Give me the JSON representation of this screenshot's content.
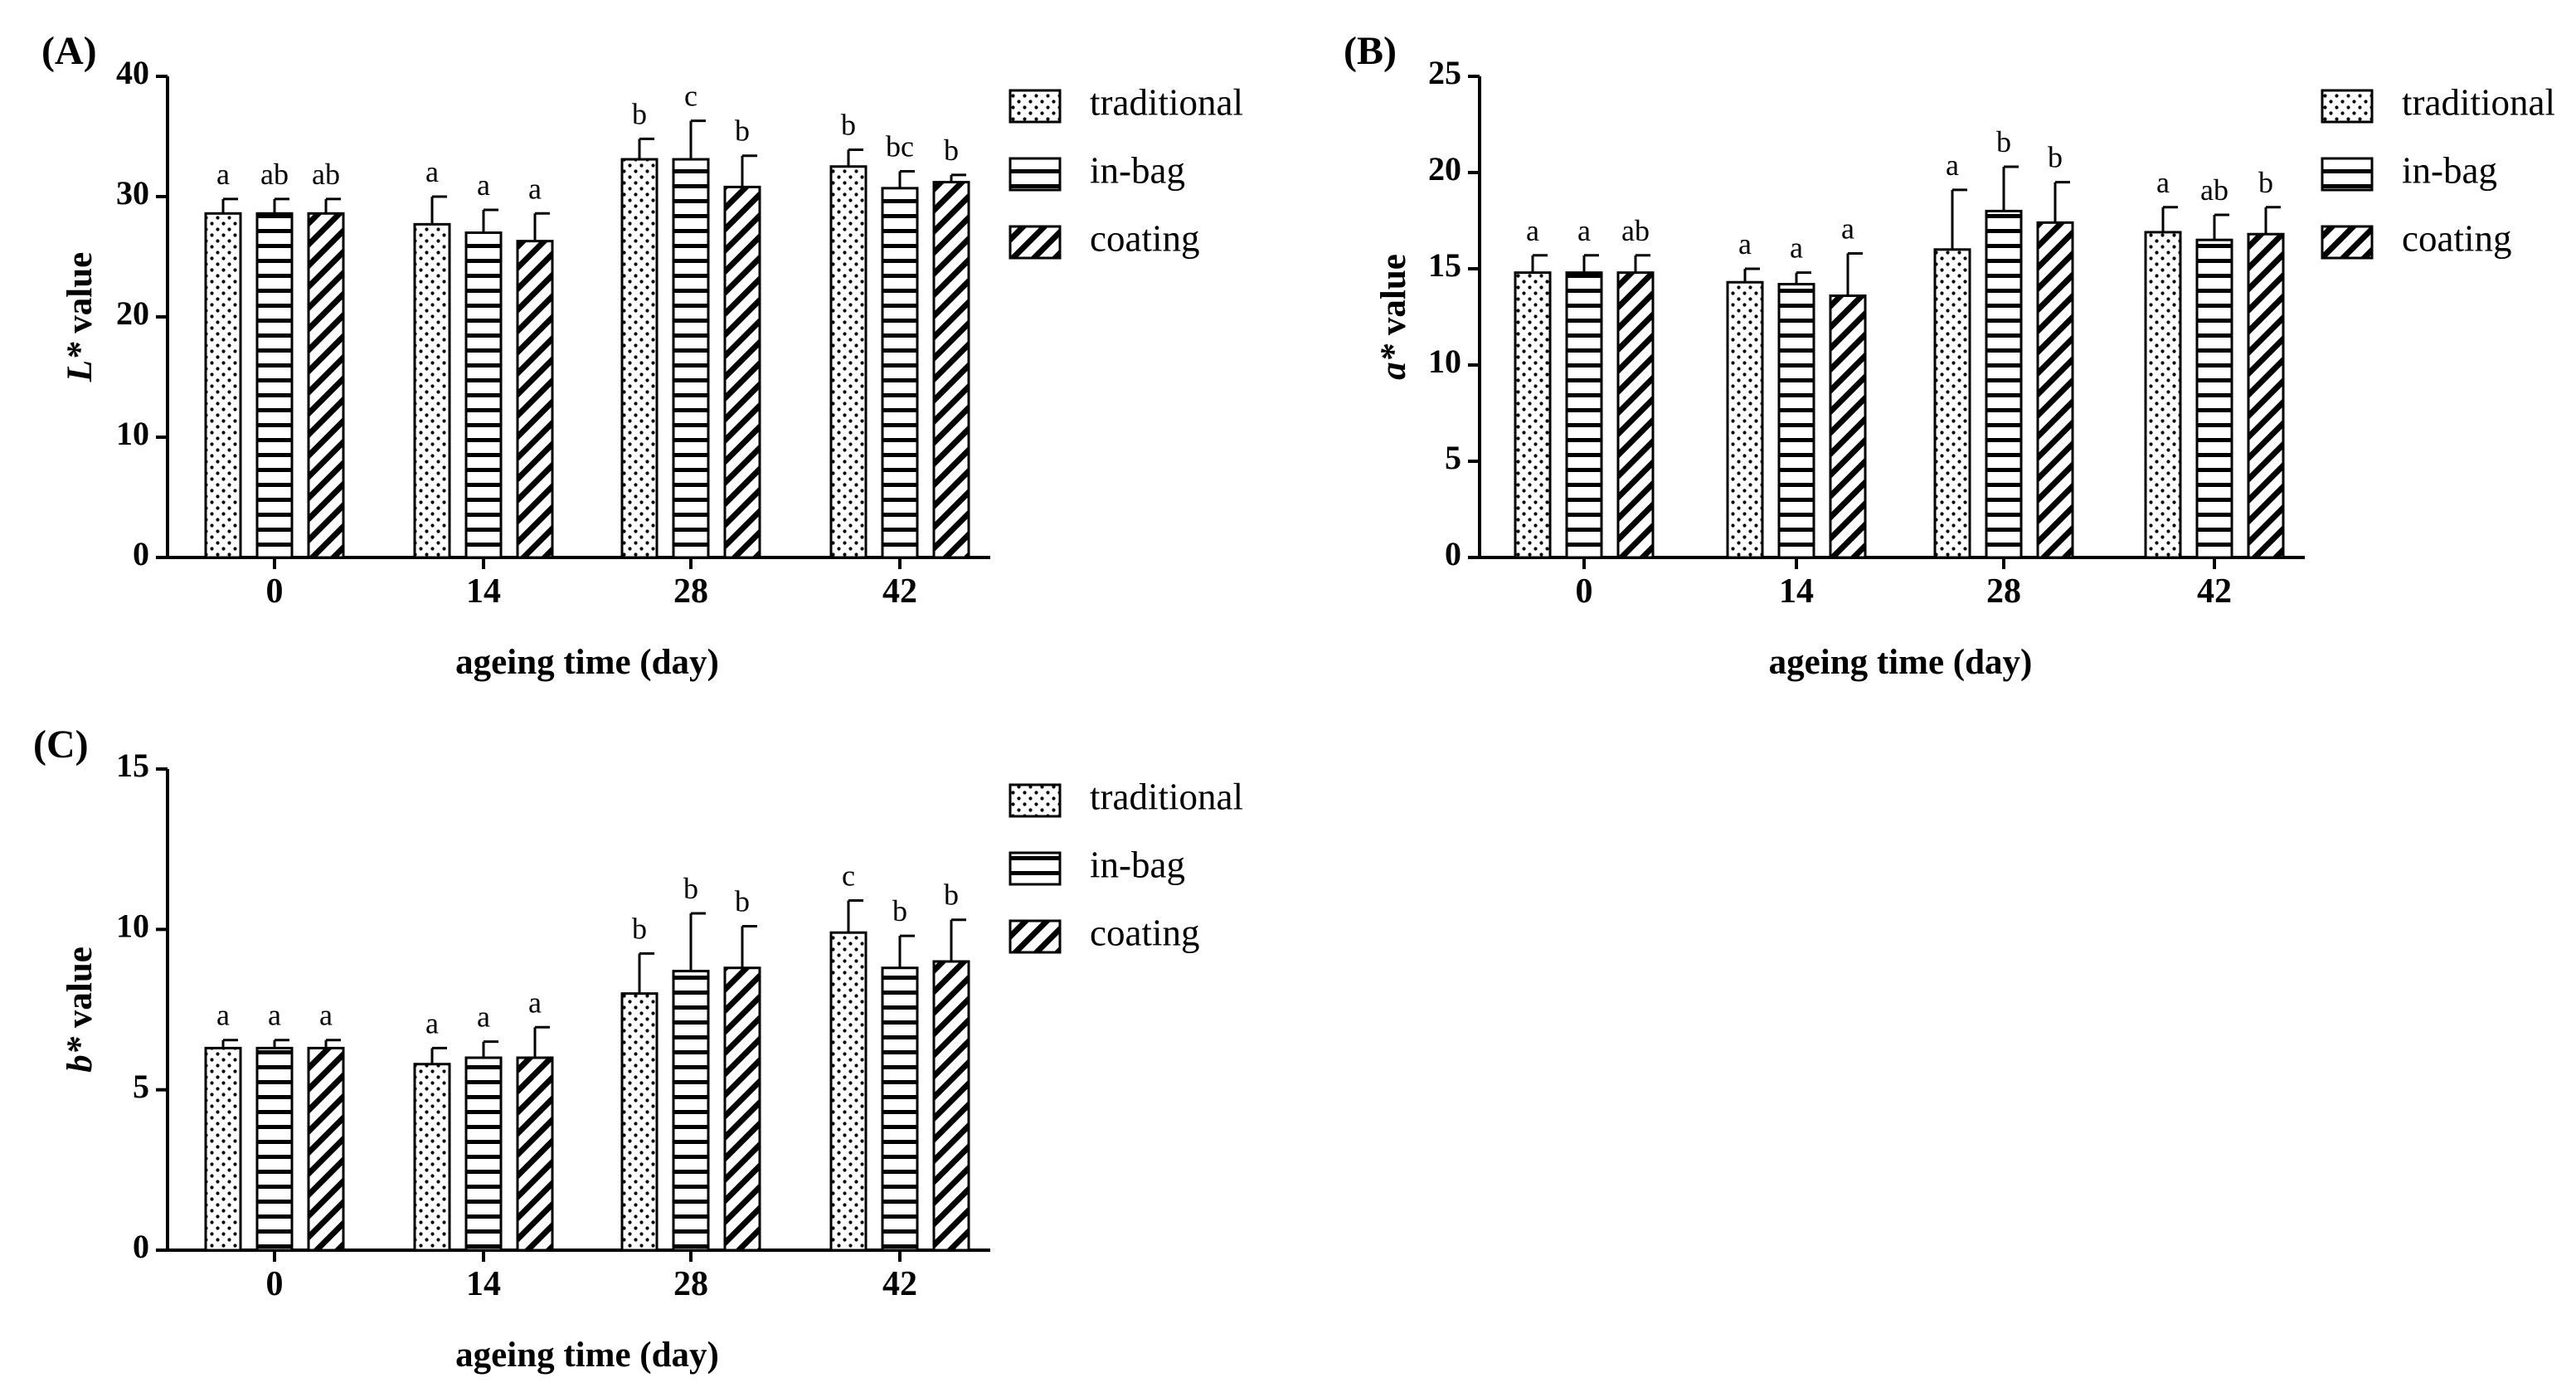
{
  "chart_data": [
    {
      "type": "bar",
      "panel": "(A)",
      "ylabel_var": "L*",
      "ylabel_rest": " value",
      "xlabel": "ageing time (day)",
      "ylim": [
        0,
        40
      ],
      "yticks": [
        0,
        10,
        20,
        30,
        40
      ],
      "categories": [
        "0",
        "14",
        "28",
        "42"
      ],
      "series": [
        {
          "name": "traditional",
          "pattern": "dots",
          "values": [
            28.6,
            27.7,
            33.1,
            32.5
          ],
          "errors": [
            1.2,
            2.3,
            1.7,
            1.4
          ],
          "letters": [
            "a",
            "a",
            "b",
            "b"
          ]
        },
        {
          "name": "in-bag",
          "pattern": "hlines",
          "values": [
            28.6,
            27.0,
            33.1,
            30.7
          ],
          "errors": [
            1.2,
            1.9,
            3.2,
            1.4
          ],
          "letters": [
            "ab",
            "a",
            "c",
            "bc"
          ]
        },
        {
          "name": "coating",
          "pattern": "diag",
          "values": [
            28.6,
            26.3,
            30.8,
            31.2
          ],
          "errors": [
            1.2,
            2.3,
            2.6,
            0.6
          ],
          "letters": [
            "ab",
            "a",
            "b",
            "b"
          ]
        }
      ]
    },
    {
      "type": "bar",
      "panel": "(B)",
      "ylabel_var": "a*",
      "ylabel_rest": " value",
      "xlabel": "ageing time (day)",
      "ylim": [
        0,
        25
      ],
      "yticks": [
        0,
        5,
        10,
        15,
        20,
        25
      ],
      "categories": [
        "0",
        "14",
        "28",
        "42"
      ],
      "series": [
        {
          "name": "traditional",
          "pattern": "dots",
          "values": [
            14.8,
            14.3,
            16.0,
            16.9
          ],
          "errors": [
            0.9,
            0.7,
            3.1,
            1.3
          ],
          "letters": [
            "a",
            "a",
            "a",
            "a"
          ]
        },
        {
          "name": "in-bag",
          "pattern": "hlines",
          "values": [
            14.8,
            14.2,
            18.0,
            16.5
          ],
          "errors": [
            0.9,
            0.6,
            2.3,
            1.3
          ],
          "letters": [
            "a",
            "a",
            "b",
            "ab"
          ]
        },
        {
          "name": "coating",
          "pattern": "diag",
          "values": [
            14.8,
            13.6,
            17.4,
            16.8
          ],
          "errors": [
            0.9,
            2.2,
            2.1,
            1.4
          ],
          "letters": [
            "ab",
            "a",
            "b",
            "b"
          ]
        }
      ]
    },
    {
      "type": "bar",
      "panel": "(C)",
      "ylabel_var": "b*",
      "ylabel_rest": " value",
      "xlabel": "ageing time (day)",
      "ylim": [
        0,
        15
      ],
      "yticks": [
        0,
        5,
        10,
        15
      ],
      "categories": [
        "0",
        "14",
        "28",
        "42"
      ],
      "series": [
        {
          "name": "traditional",
          "pattern": "dots",
          "values": [
            6.3,
            5.8,
            8.0,
            9.9
          ],
          "errors": [
            0.25,
            0.5,
            1.25,
            1.0
          ],
          "letters": [
            "a",
            "a",
            "b",
            "c"
          ]
        },
        {
          "name": "in-bag",
          "pattern": "hlines",
          "values": [
            6.3,
            6.0,
            8.7,
            8.8
          ],
          "errors": [
            0.25,
            0.5,
            1.8,
            1.0
          ],
          "letters": [
            "a",
            "a",
            "b",
            "b"
          ]
        },
        {
          "name": "coating",
          "pattern": "diag",
          "values": [
            6.3,
            6.0,
            8.8,
            9.0
          ],
          "errors": [
            0.25,
            0.95,
            1.3,
            1.3
          ],
          "letters": [
            "a",
            "a",
            "b",
            "b"
          ]
        }
      ]
    }
  ]
}
